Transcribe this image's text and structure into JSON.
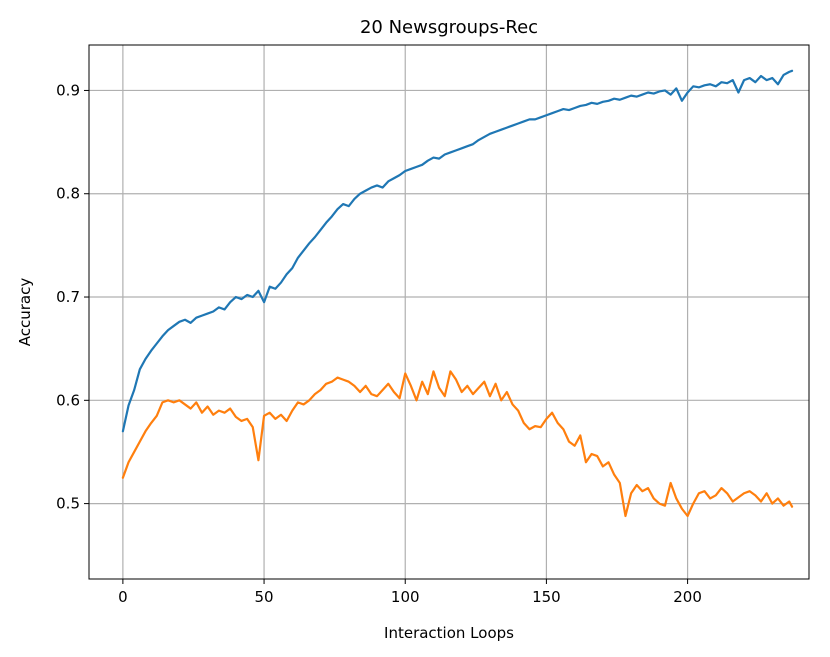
{
  "chart_data": {
    "type": "line",
    "title": "20 Newsgroups-Rec",
    "xlabel": "Interaction Loops",
    "ylabel": "Accuracy",
    "xlim": [
      -12,
      243
    ],
    "ylim": [
      0.427,
      0.944
    ],
    "xticks": [
      0,
      50,
      100,
      150,
      200
    ],
    "yticks": [
      0.5,
      0.6,
      0.7,
      0.8,
      0.9
    ],
    "xtick_labels": [
      "0",
      "50",
      "100",
      "150",
      "200"
    ],
    "ytick_labels": [
      "0.5",
      "0.6",
      "0.7",
      "0.8",
      "0.9"
    ],
    "grid": true,
    "series": [
      {
        "color": "#1f77b4",
        "x": [
          0,
          2,
          4,
          6,
          8,
          10,
          12,
          14,
          16,
          18,
          20,
          22,
          24,
          26,
          28,
          30,
          32,
          34,
          36,
          38,
          40,
          42,
          44,
          46,
          48,
          50,
          52,
          54,
          56,
          58,
          60,
          62,
          64,
          66,
          68,
          70,
          72,
          74,
          76,
          78,
          80,
          82,
          84,
          86,
          88,
          90,
          92,
          94,
          96,
          98,
          100,
          102,
          104,
          106,
          108,
          110,
          112,
          114,
          116,
          118,
          120,
          122,
          124,
          126,
          128,
          130,
          132,
          134,
          136,
          138,
          140,
          142,
          144,
          146,
          148,
          150,
          152,
          154,
          156,
          158,
          160,
          162,
          164,
          166,
          168,
          170,
          172,
          174,
          176,
          178,
          180,
          182,
          184,
          186,
          188,
          190,
          192,
          194,
          196,
          198,
          200,
          202,
          204,
          206,
          208,
          210,
          212,
          214,
          216,
          218,
          220,
          222,
          224,
          226,
          228,
          230,
          232,
          234,
          236,
          237
        ],
        "y": [
          0.57,
          0.595,
          0.61,
          0.63,
          0.64,
          0.648,
          0.655,
          0.662,
          0.668,
          0.672,
          0.676,
          0.678,
          0.675,
          0.68,
          0.682,
          0.684,
          0.686,
          0.69,
          0.688,
          0.695,
          0.7,
          0.698,
          0.702,
          0.7,
          0.706,
          0.695,
          0.71,
          0.708,
          0.714,
          0.722,
          0.728,
          0.738,
          0.745,
          0.752,
          0.758,
          0.765,
          0.772,
          0.778,
          0.785,
          0.79,
          0.788,
          0.795,
          0.8,
          0.803,
          0.806,
          0.808,
          0.806,
          0.812,
          0.815,
          0.818,
          0.822,
          0.824,
          0.826,
          0.828,
          0.832,
          0.835,
          0.834,
          0.838,
          0.84,
          0.842,
          0.844,
          0.846,
          0.848,
          0.852,
          0.855,
          0.858,
          0.86,
          0.862,
          0.864,
          0.866,
          0.868,
          0.87,
          0.872,
          0.872,
          0.874,
          0.876,
          0.878,
          0.88,
          0.882,
          0.881,
          0.883,
          0.885,
          0.886,
          0.888,
          0.887,
          0.889,
          0.89,
          0.892,
          0.891,
          0.893,
          0.895,
          0.894,
          0.896,
          0.898,
          0.897,
          0.899,
          0.9,
          0.896,
          0.902,
          0.89,
          0.898,
          0.904,
          0.903,
          0.905,
          0.906,
          0.904,
          0.908,
          0.907,
          0.91,
          0.898,
          0.91,
          0.912,
          0.908,
          0.914,
          0.91,
          0.912,
          0.906,
          0.915,
          0.918,
          0.919
        ]
      },
      {
        "color": "#ff7f0e",
        "x": [
          0,
          2,
          4,
          6,
          8,
          10,
          12,
          14,
          16,
          18,
          20,
          22,
          24,
          26,
          28,
          30,
          32,
          34,
          36,
          38,
          40,
          42,
          44,
          46,
          48,
          50,
          52,
          54,
          56,
          58,
          60,
          62,
          64,
          66,
          68,
          70,
          72,
          74,
          76,
          78,
          80,
          82,
          84,
          86,
          88,
          90,
          92,
          94,
          96,
          98,
          100,
          102,
          104,
          106,
          108,
          110,
          112,
          114,
          116,
          118,
          120,
          122,
          124,
          126,
          128,
          130,
          132,
          134,
          136,
          138,
          140,
          142,
          144,
          146,
          148,
          150,
          152,
          154,
          156,
          158,
          160,
          162,
          164,
          166,
          168,
          170,
          172,
          174,
          176,
          178,
          180,
          182,
          184,
          186,
          188,
          190,
          192,
          194,
          196,
          198,
          200,
          202,
          204,
          206,
          208,
          210,
          212,
          214,
          216,
          218,
          220,
          222,
          224,
          226,
          228,
          230,
          232,
          234,
          236,
          237
        ],
        "y": [
          0.525,
          0.54,
          0.55,
          0.56,
          0.57,
          0.578,
          0.585,
          0.598,
          0.6,
          0.598,
          0.6,
          0.596,
          0.592,
          0.598,
          0.588,
          0.594,
          0.586,
          0.59,
          0.588,
          0.592,
          0.584,
          0.58,
          0.582,
          0.574,
          0.542,
          0.585,
          0.588,
          0.582,
          0.586,
          0.58,
          0.59,
          0.598,
          0.596,
          0.6,
          0.606,
          0.61,
          0.616,
          0.618,
          0.622,
          0.62,
          0.618,
          0.614,
          0.608,
          0.614,
          0.606,
          0.604,
          0.61,
          0.616,
          0.608,
          0.602,
          0.626,
          0.614,
          0.6,
          0.618,
          0.606,
          0.628,
          0.612,
          0.604,
          0.628,
          0.62,
          0.608,
          0.614,
          0.606,
          0.612,
          0.618,
          0.604,
          0.616,
          0.6,
          0.608,
          0.596,
          0.59,
          0.578,
          0.572,
          0.575,
          0.574,
          0.582,
          0.588,
          0.578,
          0.572,
          0.56,
          0.556,
          0.566,
          0.54,
          0.548,
          0.546,
          0.536,
          0.54,
          0.528,
          0.52,
          0.488,
          0.51,
          0.518,
          0.512,
          0.515,
          0.505,
          0.5,
          0.498,
          0.52,
          0.505,
          0.495,
          0.488,
          0.5,
          0.51,
          0.512,
          0.505,
          0.508,
          0.515,
          0.51,
          0.502,
          0.506,
          0.51,
          0.512,
          0.508,
          0.502,
          0.51,
          0.5,
          0.505,
          0.498,
          0.502,
          0.497
        ]
      }
    ]
  }
}
